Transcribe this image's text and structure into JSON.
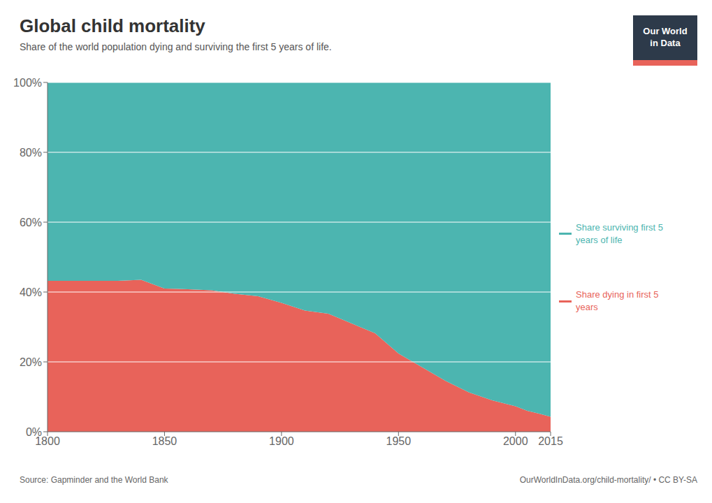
{
  "chart_data": {
    "type": "area",
    "title": "Global child mortality",
    "subtitle": "Share of the world population dying and surviving the first 5 years of life.",
    "annotations": [
      "Source: Gapminder and the World Bank",
      "OurWorldInData.org/child-mortality/ • CC BY-SA",
      "Our World\nin Data"
    ],
    "x": [
      1800,
      1810,
      1820,
      1830,
      1840,
      1850,
      1860,
      1870,
      1880,
      1890,
      1900,
      1910,
      1920,
      1930,
      1940,
      1950,
      1960,
      1970,
      1980,
      1990,
      2000,
      2005,
      2010,
      2015
    ],
    "series": [
      {
        "name": "Share dying in first 5\nyears",
        "color": "#E8635A",
        "values": [
          0.432,
          0.432,
          0.432,
          0.432,
          0.435,
          0.41,
          0.408,
          0.405,
          0.395,
          0.388,
          0.369,
          0.347,
          0.338,
          0.31,
          0.282,
          0.224,
          0.185,
          0.146,
          0.113,
          0.09,
          0.073,
          0.06,
          0.052,
          0.043
        ]
      },
      {
        "name": "Share surviving first 5\nyears of life",
        "color": "#4CB5B0",
        "values": [
          0.568,
          0.568,
          0.568,
          0.568,
          0.565,
          0.59,
          0.592,
          0.595,
          0.605,
          0.612,
          0.631,
          0.653,
          0.662,
          0.69,
          0.718,
          0.776,
          0.815,
          0.854,
          0.887,
          0.91,
          0.927,
          0.94,
          0.948,
          0.957
        ]
      }
    ],
    "stacked": true,
    "xlim": [
      1800,
      2015
    ],
    "xticks": [
      1800,
      1850,
      1900,
      1950,
      2000,
      2015
    ],
    "ylim": [
      0,
      1.0
    ],
    "yticks": [
      {
        "value": 0,
        "label": "0%"
      },
      {
        "value": 0.2,
        "label": "20%"
      },
      {
        "value": 0.4,
        "label": "40%"
      },
      {
        "value": 0.6,
        "label": "60%"
      },
      {
        "value": 0.8,
        "label": "80%"
      },
      {
        "value": 1.0,
        "label": "100%"
      }
    ],
    "grid": true,
    "legend": "right"
  }
}
